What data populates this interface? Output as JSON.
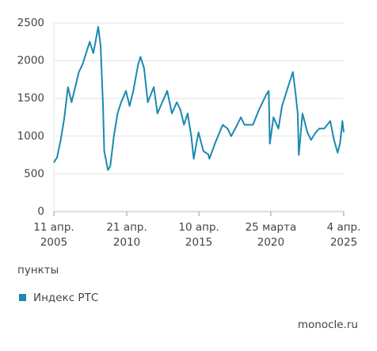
{
  "chart_data": {
    "type": "line",
    "y_axis_label": "пункты",
    "source": "monocle.ru",
    "x": [
      "2005-04-11",
      "2005-07-01",
      "2005-10-01",
      "2006-01-01",
      "2006-04-01",
      "2006-07-01",
      "2006-10-01",
      "2007-01-01",
      "2007-04-01",
      "2007-07-01",
      "2007-10-01",
      "2008-01-01",
      "2008-05-01",
      "2008-07-01",
      "2008-09-01",
      "2008-10-01",
      "2009-01-01",
      "2009-03-01",
      "2009-06-01",
      "2009-09-01",
      "2009-12-01",
      "2010-04-01",
      "2010-07-01",
      "2010-10-01",
      "2011-02-01",
      "2011-04-01",
      "2011-07-01",
      "2011-10-01",
      "2012-03-01",
      "2012-06-01",
      "2012-10-01",
      "2013-02-01",
      "2013-06-01",
      "2013-10-01",
      "2014-01-01",
      "2014-04-01",
      "2014-07-01",
      "2014-10-01",
      "2014-12-01",
      "2015-04-01",
      "2015-08-01",
      "2015-12-01",
      "2016-01-01",
      "2016-06-01",
      "2016-12-01",
      "2017-04-01",
      "2017-07-01",
      "2017-12-01",
      "2018-03-01",
      "2018-06-01",
      "2018-10-01",
      "2019-01-01",
      "2019-06-01",
      "2019-12-01",
      "2020-02-01",
      "2020-03-01",
      "2020-06-01",
      "2020-10-01",
      "2021-01-01",
      "2021-06-01",
      "2021-10-01",
      "2021-12-01",
      "2022-02-01",
      "2022-03-01",
      "2022-06-01",
      "2022-10-01",
      "2023-01-01",
      "2023-05-01",
      "2023-08-01",
      "2023-12-01",
      "2024-05-01",
      "2024-08-01",
      "2024-11-01",
      "2025-01-01",
      "2025-03-01",
      "2025-04-04"
    ],
    "series": [
      {
        "name": "Индекс РТС",
        "color": "#1b89b0",
        "values": [
          650,
          720,
          950,
          1250,
          1650,
          1450,
          1650,
          1850,
          1950,
          2100,
          2250,
          2100,
          2450,
          2200,
          1400,
          800,
          550,
          600,
          1000,
          1300,
          1450,
          1600,
          1400,
          1600,
          1950,
          2050,
          1900,
          1450,
          1650,
          1300,
          1450,
          1600,
          1300,
          1450,
          1350,
          1150,
          1300,
          1000,
          700,
          1050,
          800,
          760,
          700,
          920,
          1150,
          1100,
          1000,
          1150,
          1250,
          1150,
          1150,
          1150,
          1350,
          1550,
          1600,
          900,
          1250,
          1100,
          1400,
          1650,
          1850,
          1600,
          1300,
          750,
          1300,
          1050,
          950,
          1050,
          1100,
          1100,
          1200,
          950,
          780,
          900,
          1200,
          1050
        ]
      }
    ],
    "xlim": [
      "2005-04-11",
      "2025-04-04"
    ],
    "xticks": [
      {
        "value": "2005-04-11",
        "label": "11 апр. 2005"
      },
      {
        "value": "2010-04-21",
        "label": "21 апр. 2010"
      },
      {
        "value": "2015-04-10",
        "label": "10 апр. 2015"
      },
      {
        "value": "2020-03-25",
        "label": "25 марта 2020"
      },
      {
        "value": "2025-04-04",
        "label": "4 апр. 2025"
      }
    ],
    "ylim": [
      0,
      2500
    ],
    "yticks": [
      0,
      500,
      1000,
      1500,
      2000,
      2500
    ],
    "grid": true
  }
}
